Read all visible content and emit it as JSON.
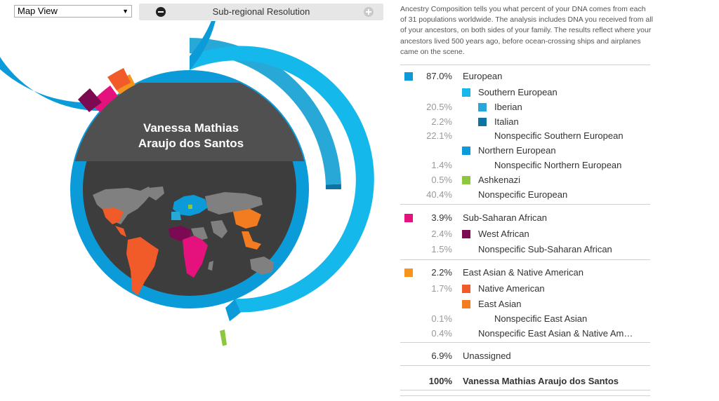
{
  "controls": {
    "view_select": "Map View",
    "resolution_label": "Sub-regional Resolution"
  },
  "person": {
    "name_line1": "Vanessa Mathias",
    "name_line2": "Araujo dos Santos"
  },
  "description": "Ancestry Composition tells you what percent of your DNA comes from each of 31 populations worldwide. The analysis includes DNA you received from all of your ancestors, on both sides of your family. The results reflect where your ancestors lived 500 years ago, before ocean-crossing ships and airplanes came on the scene.",
  "colors": {
    "european": "#0b9bd8",
    "southern_european": "#14b8ea",
    "iberian": "#27a8d6",
    "italian": "#0e72a3",
    "northern_european": "#0b9bd8",
    "ashkenazi": "#8dc63f",
    "sub_saharan": "#e5127d",
    "west_african": "#7c0a52",
    "east_asian_native": "#f7941d",
    "native_american": "#f15a29",
    "east_asian": "#f47c20",
    "map_bg": "#3d3d3d",
    "land_gray": "#808080",
    "name_band": "#505050"
  },
  "rows": [
    {
      "pct": "87.0%",
      "label": "European",
      "color": "#0b9bd8",
      "level": 0
    },
    {
      "pct": "",
      "label": "Southern European",
      "color": "#14b8ea",
      "level": 1
    },
    {
      "pct": "20.5%",
      "label": "Iberian",
      "color": "#27a8d6",
      "level": 2
    },
    {
      "pct": "2.2%",
      "label": "Italian",
      "color": "#0e72a3",
      "level": 2
    },
    {
      "pct": "22.1%",
      "label": "Nonspecific Southern European",
      "color": null,
      "level": 2
    },
    {
      "pct": "",
      "label": "Northern European",
      "color": "#0b9bd8",
      "level": 1
    },
    {
      "pct": "1.4%",
      "label": "Nonspecific Northern European",
      "color": null,
      "level": 2
    },
    {
      "pct": "0.5%",
      "label": "Ashkenazi",
      "color": "#8dc63f",
      "level": 1
    },
    {
      "pct": "40.4%",
      "label": "Nonspecific European",
      "color": null,
      "level": 1
    },
    {
      "pct": "3.9%",
      "label": "Sub-Saharan African",
      "color": "#e5127d",
      "level": 0
    },
    {
      "pct": "2.4%",
      "label": "West African",
      "color": "#7c0a52",
      "level": 1
    },
    {
      "pct": "1.5%",
      "label": "Nonspecific Sub-Saharan African",
      "color": null,
      "level": 1
    },
    {
      "pct": "2.2%",
      "label": "East Asian & Native American",
      "color": "#f7941d",
      "level": 0
    },
    {
      "pct": "1.7%",
      "label": "Native American",
      "color": "#f15a29",
      "level": 1
    },
    {
      "pct": "",
      "label": "East Asian",
      "color": "#f47c20",
      "level": 1
    },
    {
      "pct": "0.1%",
      "label": "Nonspecific East Asian",
      "color": null,
      "level": 2
    },
    {
      "pct": "0.4%",
      "label": "Nonspecific East Asian & Native Am…",
      "color": null,
      "level": 1
    },
    {
      "pct": "6.9%",
      "label": "Unassigned",
      "color": null,
      "level": 0
    },
    {
      "pct": "100%",
      "label": "Vanessa Mathias Araujo dos Santos",
      "color": null,
      "level": 0
    }
  ]
}
